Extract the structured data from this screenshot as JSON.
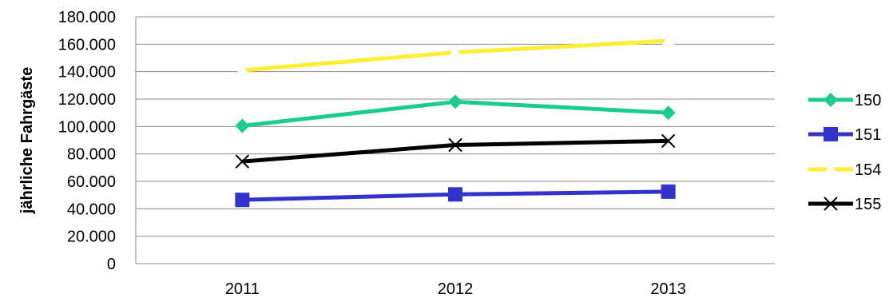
{
  "chart_data": {
    "type": "line",
    "categories": [
      "2011",
      "2012",
      "2013"
    ],
    "ylabel": "jährliche Fahrgäste",
    "xlabel": "",
    "ylim": [
      0,
      180000
    ],
    "ytick_values": [
      0,
      20000,
      40000,
      60000,
      80000,
      100000,
      120000,
      140000,
      160000,
      180000
    ],
    "ytick_labels": [
      "0",
      "20.000",
      "40.000",
      "60.000",
      "80.000",
      "100.000",
      "120.000",
      "140.000",
      "160.000",
      "180.000"
    ],
    "grid": "horizontal",
    "legend_position": "right",
    "series": [
      {
        "name": "150",
        "values": [
          100500,
          118000,
          110000
        ],
        "color": "#1ccc8c",
        "marker": "diamond"
      },
      {
        "name": "151",
        "values": [
          46500,
          50500,
          52500
        ],
        "color": "#3333cc",
        "marker": "square"
      },
      {
        "name": "154",
        "values": [
          141000,
          154000,
          162500
        ],
        "color": "#ffee33",
        "marker": "triangle"
      },
      {
        "name": "155",
        "values": [
          74500,
          86500,
          89500
        ],
        "color": "#000000",
        "marker": "x"
      }
    ]
  }
}
